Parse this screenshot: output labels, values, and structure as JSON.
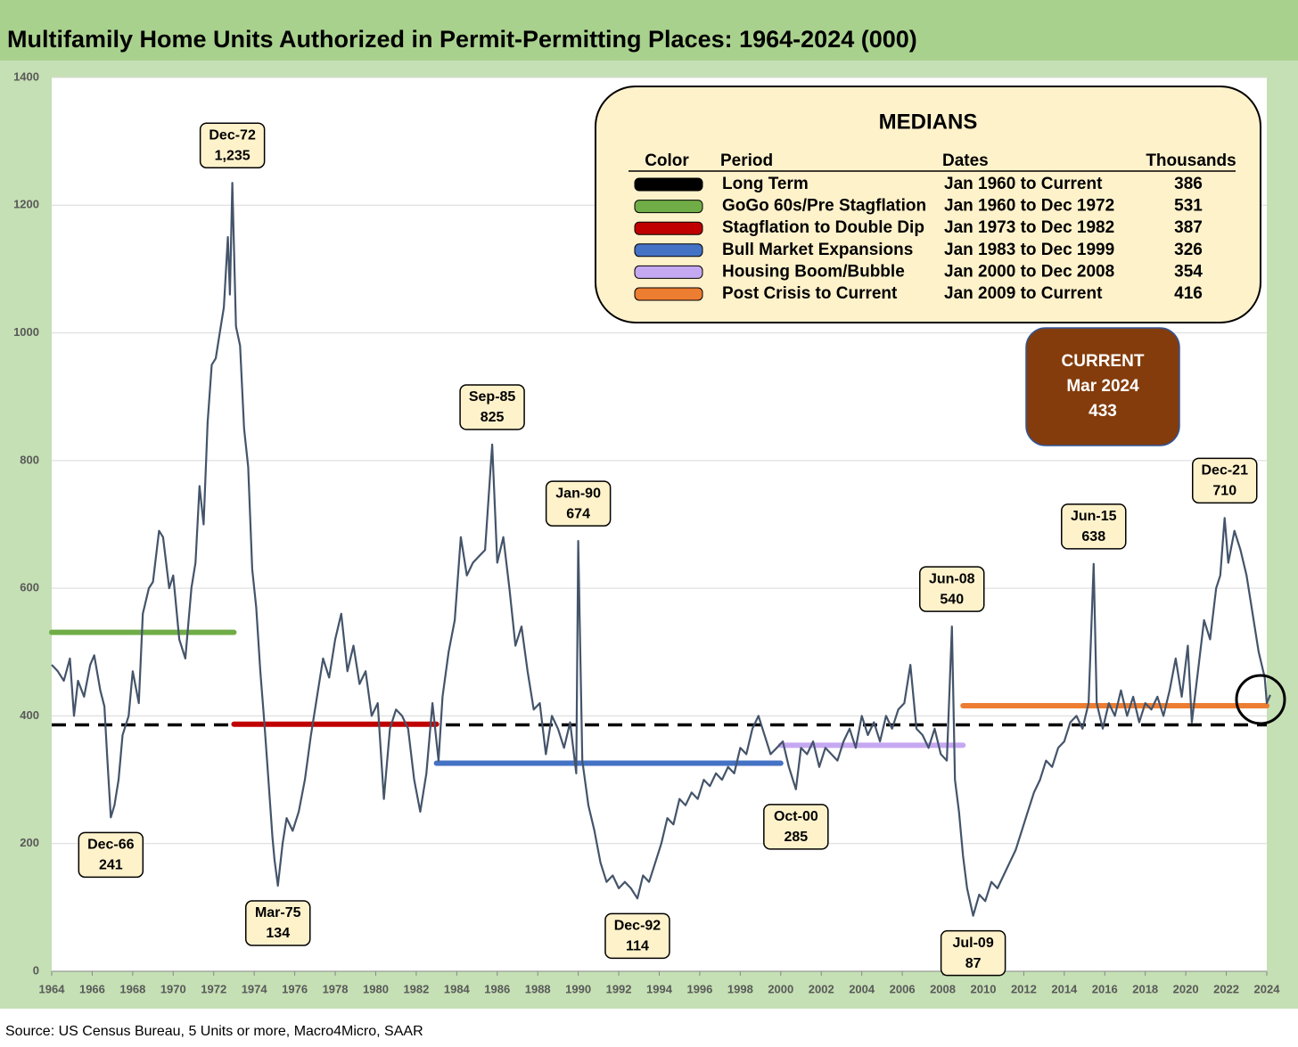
{
  "chart_data": {
    "type": "line",
    "title": "Multifamily Home Units Authorized in Permit-Permitting Places: 1964-2024 (000)",
    "source": "Source: US Census Bureau, 5 Units or more, Macro4Micro, SAAR",
    "xlim": [
      1964,
      2024
    ],
    "xticks": [
      1964,
      1966,
      1968,
      1970,
      1972,
      1974,
      1976,
      1978,
      1980,
      1982,
      1984,
      1986,
      1988,
      1990,
      1992,
      1994,
      1996,
      1998,
      2000,
      2002,
      2004,
      2006,
      2008,
      2010,
      2012,
      2014,
      2016,
      2018,
      2020,
      2022,
      2024
    ],
    "ylim": [
      0,
      1400
    ],
    "yticks": [
      0,
      200,
      400,
      600,
      800,
      1000,
      1200,
      1400
    ],
    "grid": true,
    "x": [
      1964,
      1964.3,
      1964.6,
      1964.9,
      1965.1,
      1965.3,
      1965.6,
      1965.9,
      1966.1,
      1966.4,
      1966.6,
      1966.75,
      1966.92,
      1967.1,
      1967.3,
      1967.5,
      1967.8,
      1968,
      1968.3,
      1968.5,
      1968.8,
      1969,
      1969.3,
      1969.5,
      1969.8,
      1970,
      1970.3,
      1970.6,
      1970.9,
      1971.1,
      1971.3,
      1971.5,
      1971.7,
      1971.9,
      1972.1,
      1972.3,
      1972.5,
      1972.7,
      1972.8,
      1972.92,
      1973.1,
      1973.3,
      1973.5,
      1973.7,
      1973.9,
      1974.1,
      1974.3,
      1974.5,
      1974.7,
      1974.9,
      1975,
      1975.17,
      1975.4,
      1975.6,
      1975.9,
      1976.2,
      1976.5,
      1976.8,
      1977.1,
      1977.4,
      1977.7,
      1978,
      1978.3,
      1978.6,
      1978.9,
      1979.2,
      1979.5,
      1979.8,
      1980.1,
      1980.4,
      1980.7,
      1981,
      1981.3,
      1981.6,
      1981.9,
      1982.2,
      1982.5,
      1982.8,
      1983.1,
      1983.3,
      1983.6,
      1983.9,
      1984.2,
      1984.5,
      1984.8,
      1985.1,
      1985.4,
      1985.75,
      1986,
      1986.3,
      1986.6,
      1986.9,
      1987.2,
      1987.5,
      1987.8,
      1988.1,
      1988.4,
      1988.7,
      1989,
      1989.3,
      1989.6,
      1989.9,
      1990,
      1990.2,
      1990.5,
      1990.8,
      1991.1,
      1991.4,
      1991.7,
      1992,
      1992.3,
      1992.6,
      1992.92,
      1993.2,
      1993.5,
      1993.8,
      1994.1,
      1994.4,
      1994.7,
      1995,
      1995.3,
      1995.6,
      1995.9,
      1996.2,
      1996.5,
      1996.8,
      1997.1,
      1997.4,
      1997.7,
      1998,
      1998.3,
      1998.6,
      1998.9,
      1999.2,
      1999.5,
      1999.8,
      2000.1,
      2000.4,
      2000.75,
      2001,
      2001.3,
      2001.6,
      2001.9,
      2002.2,
      2002.5,
      2002.8,
      2003.1,
      2003.4,
      2003.7,
      2004,
      2004.3,
      2004.6,
      2004.9,
      2005.2,
      2005.5,
      2005.8,
      2006.1,
      2006.4,
      2006.7,
      2007,
      2007.3,
      2007.6,
      2007.9,
      2008.2,
      2008.45,
      2008.6,
      2008.8,
      2009,
      2009.2,
      2009.5,
      2009.8,
      2010.1,
      2010.4,
      2010.7,
      2011,
      2011.3,
      2011.6,
      2011.9,
      2012.2,
      2012.5,
      2012.8,
      2013.1,
      2013.4,
      2013.7,
      2014,
      2014.3,
      2014.6,
      2014.9,
      2015.2,
      2015.45,
      2015.6,
      2015.9,
      2016.2,
      2016.5,
      2016.8,
      2017.1,
      2017.4,
      2017.7,
      2018,
      2018.3,
      2018.6,
      2018.9,
      2019.2,
      2019.5,
      2019.8,
      2020.1,
      2020.3,
      2020.6,
      2020.9,
      2021.2,
      2021.5,
      2021.7,
      2021.92,
      2022.1,
      2022.4,
      2022.7,
      2023,
      2023.3,
      2023.6,
      2023.9,
      2024,
      2024.17
    ],
    "series": [
      {
        "color": "#44546a",
        "values": [
          480,
          470,
          455,
          490,
          400,
          455,
          430,
          480,
          495,
          440,
          415,
          330,
          241,
          260,
          300,
          370,
          400,
          470,
          420,
          560,
          600,
          610,
          690,
          680,
          600,
          620,
          520,
          490,
          600,
          640,
          760,
          700,
          860,
          950,
          960,
          1000,
          1040,
          1150,
          1060,
          1235,
          1010,
          980,
          850,
          790,
          630,
          570,
          470,
          390,
          300,
          210,
          175,
          134,
          200,
          240,
          220,
          250,
          300,
          370,
          430,
          490,
          460,
          520,
          560,
          470,
          510,
          450,
          470,
          400,
          420,
          270,
          380,
          410,
          400,
          380,
          300,
          250,
          310,
          420,
          330,
          430,
          500,
          550,
          680,
          620,
          640,
          650,
          660,
          825,
          640,
          680,
          600,
          510,
          540,
          470,
          410,
          420,
          340,
          400,
          380,
          350,
          390,
          310,
          674,
          330,
          260,
          220,
          170,
          140,
          150,
          130,
          140,
          130,
          114,
          150,
          140,
          170,
          200,
          240,
          230,
          270,
          260,
          280,
          270,
          300,
          290,
          310,
          300,
          320,
          310,
          350,
          340,
          380,
          400,
          370,
          340,
          350,
          360,
          320,
          285,
          350,
          340,
          360,
          320,
          350,
          340,
          330,
          360,
          380,
          350,
          400,
          370,
          390,
          360,
          400,
          380,
          410,
          420,
          480,
          380,
          370,
          350,
          380,
          340,
          330,
          540,
          300,
          250,
          180,
          130,
          87,
          120,
          110,
          140,
          130,
          150,
          170,
          190,
          220,
          250,
          280,
          300,
          330,
          320,
          350,
          360,
          390,
          400,
          380,
          420,
          638,
          420,
          380,
          420,
          400,
          440,
          400,
          430,
          390,
          420,
          410,
          430,
          400,
          440,
          490,
          430,
          510,
          390,
          470,
          550,
          520,
          600,
          620,
          710,
          640,
          690,
          660,
          620,
          560,
          500,
          460,
          420,
          433
        ]
      }
    ],
    "annotations": [
      {
        "date": "Dec-72",
        "x": 1972.92,
        "value": 1235,
        "label": "1,235"
      },
      {
        "date": "Dec-66",
        "x": 1966.92,
        "value": 241,
        "label": "241"
      },
      {
        "date": "Mar-75",
        "x": 1975.17,
        "value": 134,
        "label": "134"
      },
      {
        "date": "Sep-85",
        "x": 1985.75,
        "value": 825,
        "label": "825"
      },
      {
        "date": "Jan-90",
        "x": 1990,
        "value": 674,
        "label": "674"
      },
      {
        "date": "Dec-92",
        "x": 1992.92,
        "value": 114,
        "label": "114"
      },
      {
        "date": "Oct-00",
        "x": 2000.75,
        "value": 285,
        "label": "285"
      },
      {
        "date": "Jun-08",
        "x": 2008.45,
        "value": 540,
        "label": "540"
      },
      {
        "date": "Jul-09",
        "x": 2009.5,
        "value": 87,
        "label": "87"
      },
      {
        "date": "Jun-15",
        "x": 2015.45,
        "value": 638,
        "label": "638"
      },
      {
        "date": "Dec-21",
        "x": 2021.92,
        "value": 710,
        "label": "710"
      }
    ],
    "medians_title": "MEDIANS",
    "medians_headers": [
      "Color",
      "Period",
      "Dates",
      "Thousands"
    ],
    "medians": [
      {
        "period": "Long Term",
        "dates": "Jan 1960 to Current",
        "value": 386,
        "color": "#000000",
        "span": [
          1964,
          2024
        ],
        "dashed": true
      },
      {
        "period": "GoGo 60s/Pre Stagflation",
        "dates": "Jan 1960 to Dec 1972",
        "value": 531,
        "color": "#70ad47",
        "span": [
          1964,
          1973
        ]
      },
      {
        "period": "Stagflation to Double Dip",
        "dates": "Jan 1973 to Dec 1982",
        "value": 387,
        "color": "#c00000",
        "span": [
          1973,
          1983
        ]
      },
      {
        "period": "Bull Market Expansions",
        "dates": "Jan 1983 to Dec 1999",
        "value": 326,
        "color": "#4472c4",
        "span": [
          1983,
          2000
        ]
      },
      {
        "period": "Housing Boom/Bubble",
        "dates": "Jan 2000 to Dec 2008",
        "value": 354,
        "color": "#c5a8f2",
        "span": [
          2000,
          2009
        ]
      },
      {
        "period": "Post Crisis to Current",
        "dates": "Jan 2009 to Current",
        "value": 416,
        "color": "#ed7d31",
        "span": [
          2009,
          2024
        ]
      }
    ],
    "current": {
      "heading": "CURRENT",
      "date": "Mar 2024",
      "value": 433
    }
  }
}
